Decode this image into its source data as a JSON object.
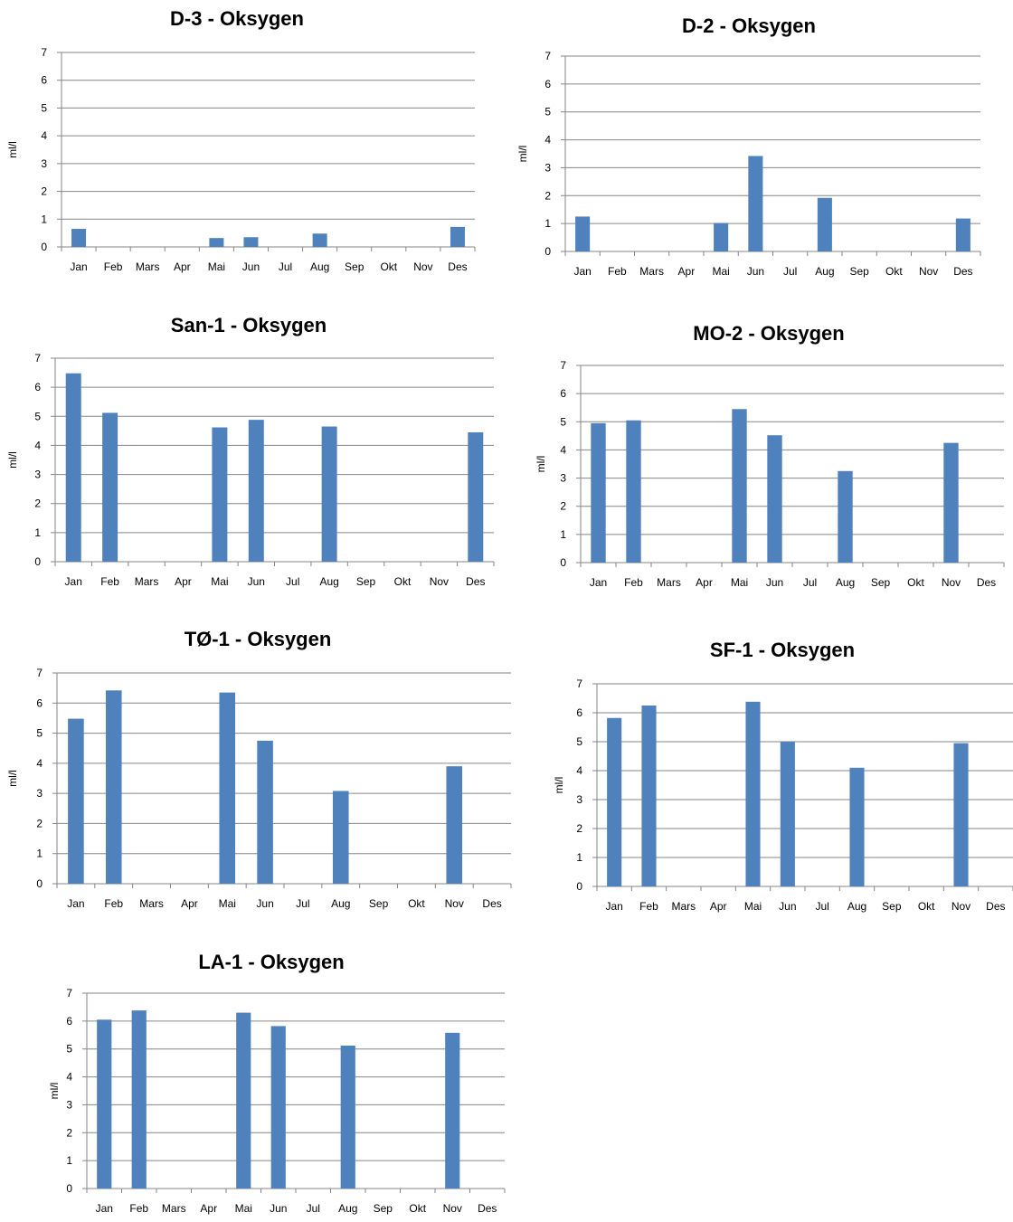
{
  "chart_data": [
    {
      "type": "bar",
      "title": "D-3 - Oksygen",
      "ylabel": "ml/l",
      "ylim": [
        0,
        7
      ],
      "categories": [
        "Jan",
        "Feb",
        "Mars",
        "Apr",
        "Mai",
        "Jun",
        "Jul",
        "Aug",
        "Sep",
        "Okt",
        "Nov",
        "Des"
      ],
      "values": [
        0.65,
        null,
        null,
        null,
        0.32,
        0.35,
        null,
        0.48,
        null,
        null,
        null,
        0.72
      ],
      "color": "#4f81bd",
      "grid": true
    },
    {
      "type": "bar",
      "title": "D-2 - Oksygen",
      "ylabel": "ml/l",
      "ylim": [
        0,
        7
      ],
      "categories": [
        "Jan",
        "Feb",
        "Mars",
        "Apr",
        "Mai",
        "Jun",
        "Jul",
        "Aug",
        "Sep",
        "Okt",
        "Nov",
        "Des"
      ],
      "values": [
        1.25,
        null,
        null,
        null,
        1.02,
        3.42,
        null,
        1.92,
        null,
        null,
        null,
        1.18
      ],
      "color": "#4f81bd",
      "grid": true
    },
    {
      "type": "bar",
      "title": "San-1 - Oksygen",
      "ylabel": "ml/l",
      "ylim": [
        0,
        7
      ],
      "categories": [
        "Jan",
        "Feb",
        "Mars",
        "Apr",
        "Mai",
        "Jun",
        "Jul",
        "Aug",
        "Sep",
        "Okt",
        "Nov",
        "Des"
      ],
      "values": [
        6.48,
        5.12,
        null,
        null,
        4.62,
        4.88,
        null,
        4.65,
        null,
        null,
        null,
        4.45
      ],
      "color": "#4f81bd",
      "grid": true
    },
    {
      "type": "bar",
      "title": "MO-2 - Oksygen",
      "ylabel": "ml/l",
      "ylim": [
        0,
        7
      ],
      "categories": [
        "Jan",
        "Feb",
        "Mars",
        "Apr",
        "Mai",
        "Jun",
        "Jul",
        "Aug",
        "Sep",
        "Okt",
        "Nov",
        "Des"
      ],
      "values": [
        4.95,
        5.05,
        null,
        null,
        5.45,
        4.52,
        null,
        3.25,
        null,
        null,
        4.25,
        null
      ],
      "color": "#4f81bd",
      "grid": true
    },
    {
      "type": "bar",
      "title": "TØ-1 - Oksygen",
      "ylabel": "ml/l",
      "ylim": [
        0,
        7
      ],
      "categories": [
        "Jan",
        "Feb",
        "Mars",
        "Apr",
        "Mai",
        "Jun",
        "Jul",
        "Aug",
        "Sep",
        "Okt",
        "Nov",
        "Des"
      ],
      "values": [
        5.48,
        6.42,
        null,
        null,
        6.35,
        4.75,
        null,
        3.08,
        null,
        null,
        3.9,
        null
      ],
      "color": "#4f81bd",
      "grid": true
    },
    {
      "type": "bar",
      "title": "SF-1 - Oksygen",
      "ylabel": "ml/l",
      "ylim": [
        0,
        7
      ],
      "categories": [
        "Jan",
        "Feb",
        "Mars",
        "Apr",
        "Mai",
        "Jun",
        "Jul",
        "Aug",
        "Sep",
        "Okt",
        "Nov",
        "Des"
      ],
      "values": [
        5.82,
        6.25,
        null,
        null,
        6.38,
        5.0,
        null,
        4.1,
        null,
        null,
        4.95,
        null
      ],
      "color": "#4f81bd",
      "grid": true
    },
    {
      "type": "bar",
      "title": "LA-1 - Oksygen",
      "ylabel": "ml/l",
      "ylim": [
        0,
        7
      ],
      "categories": [
        "Jan",
        "Feb",
        "Mars",
        "Apr",
        "Mai",
        "Jun",
        "Jul",
        "Aug",
        "Sep",
        "Okt",
        "Nov",
        "Des"
      ],
      "values": [
        6.05,
        6.38,
        null,
        null,
        6.3,
        5.82,
        null,
        5.12,
        null,
        null,
        5.58,
        null
      ],
      "color": "#4f81bd",
      "grid": true
    }
  ]
}
